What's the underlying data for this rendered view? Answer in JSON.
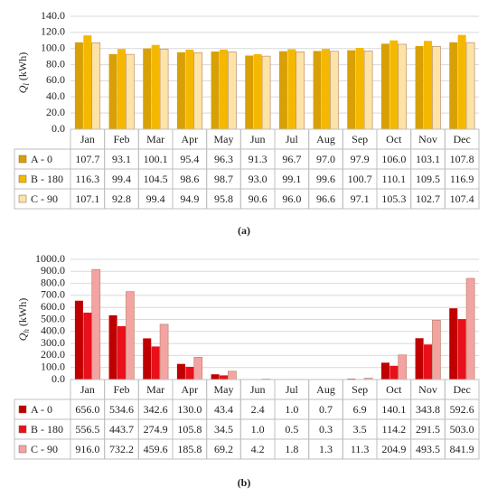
{
  "chart_data": [
    {
      "type": "bar",
      "caption": "(a)",
      "ylabel": {
        "symbol": "Q",
        "subscript": "l",
        "unit": "(kWh)"
      },
      "categories": [
        "Jan",
        "Feb",
        "Mar",
        "Apr",
        "May",
        "Jun",
        "Jul",
        "Aug",
        "Sep",
        "Oct",
        "Nov",
        "Dec"
      ],
      "ylim": [
        0,
        140
      ],
      "yticks": [
        {
          "value": 0,
          "label": "0.0"
        },
        {
          "value": 20,
          "label": "20.0"
        },
        {
          "value": 40,
          "label": "40.0"
        },
        {
          "value": 60,
          "label": "60.0"
        },
        {
          "value": 80,
          "label": "80.0"
        },
        {
          "value": 100,
          "label": "100.0"
        },
        {
          "value": 120,
          "label": "120.0"
        },
        {
          "value": 140,
          "label": "140.0"
        }
      ],
      "grid": true,
      "series": [
        {
          "name": "A - 0",
          "color": "#d9a006",
          "values": [
            107.7,
            93.1,
            100.1,
            95.4,
            96.3,
            91.3,
            96.7,
            97.0,
            97.9,
            106.0,
            103.1,
            107.8
          ],
          "value_labels": [
            "107.7",
            "93.1",
            "100.1",
            "95.4",
            "96.3",
            "91.3",
            "96.7",
            "97.0",
            "97.9",
            "106.0",
            "103.1",
            "107.8"
          ]
        },
        {
          "name": "B - 180",
          "color": "#f5b800",
          "values": [
            116.3,
            99.4,
            104.5,
            98.6,
            98.7,
            93.0,
            99.1,
            99.6,
            100.7,
            110.1,
            109.5,
            116.9
          ],
          "value_labels": [
            "116.3",
            "99.4",
            "104.5",
            "98.6",
            "98.7",
            "93.0",
            "99.1",
            "99.6",
            "100.7",
            "110.1",
            "109.5",
            "116.9"
          ]
        },
        {
          "name": "C - 90",
          "color": "#fde3a6",
          "values": [
            107.1,
            92.8,
            99.4,
            94.9,
            95.8,
            90.6,
            96.0,
            96.6,
            97.1,
            105.3,
            102.7,
            107.4
          ],
          "value_labels": [
            "107.1",
            "92.8",
            "99.4",
            "94.9",
            "95.8",
            "90.6",
            "96.0",
            "96.6",
            "97.1",
            "105.3",
            "102.7",
            "107.4"
          ]
        }
      ]
    },
    {
      "type": "bar",
      "caption": "(b)",
      "ylabel": {
        "symbol": "Q",
        "subscript": "h",
        "unit": "(kWh)"
      },
      "categories": [
        "Jan",
        "Feb",
        "Mar",
        "Apr",
        "May",
        "Jun",
        "Jul",
        "Aug",
        "Sep",
        "Oct",
        "Nov",
        "Dec"
      ],
      "ylim": [
        0,
        1000
      ],
      "yticks": [
        {
          "value": 0,
          "label": "0.0"
        },
        {
          "value": 100,
          "label": "100.0"
        },
        {
          "value": 200,
          "label": "200.0"
        },
        {
          "value": 300,
          "label": "300.0"
        },
        {
          "value": 400,
          "label": "400.0"
        },
        {
          "value": 500,
          "label": "500.0"
        },
        {
          "value": 600,
          "label": "600.0"
        },
        {
          "value": 700,
          "label": "700.0"
        },
        {
          "value": 800,
          "label": "800.0"
        },
        {
          "value": 900,
          "label": "900.0"
        },
        {
          "value": 1000,
          "label": "1000.0"
        }
      ],
      "grid": true,
      "series": [
        {
          "name": "A - 0",
          "color": "#c00000",
          "values": [
            656.0,
            534.6,
            342.6,
            130.0,
            43.4,
            2.4,
            1.0,
            0.7,
            6.9,
            140.1,
            343.8,
            592.6
          ],
          "value_labels": [
            "656.0",
            "534.6",
            "342.6",
            "130.0",
            "43.4",
            "2.4",
            "1.0",
            "0.7",
            "6.9",
            "140.1",
            "343.8",
            "592.6"
          ]
        },
        {
          "name": "B - 180",
          "color": "#e8101a",
          "values": [
            556.5,
            443.7,
            274.9,
            105.8,
            34.5,
            1.0,
            0.5,
            0.3,
            3.5,
            114.2,
            291.5,
            503.0
          ],
          "value_labels": [
            "556.5",
            "443.7",
            "274.9",
            "105.8",
            "34.5",
            "1.0",
            "0.5",
            "0.3",
            "3.5",
            "114.2",
            "291.5",
            "503.0"
          ]
        },
        {
          "name": "C - 90",
          "color": "#f4a3a3",
          "values": [
            916.0,
            732.2,
            459.6,
            185.8,
            69.2,
            4.2,
            1.8,
            1.3,
            11.3,
            204.9,
            493.5,
            841.9
          ],
          "value_labels": [
            "916.0",
            "732.2",
            "459.6",
            "185.8",
            "69.2",
            "4.2",
            "1.8",
            "1.3",
            "11.3",
            "204.9",
            "493.5",
            "841.9"
          ]
        }
      ]
    }
  ]
}
